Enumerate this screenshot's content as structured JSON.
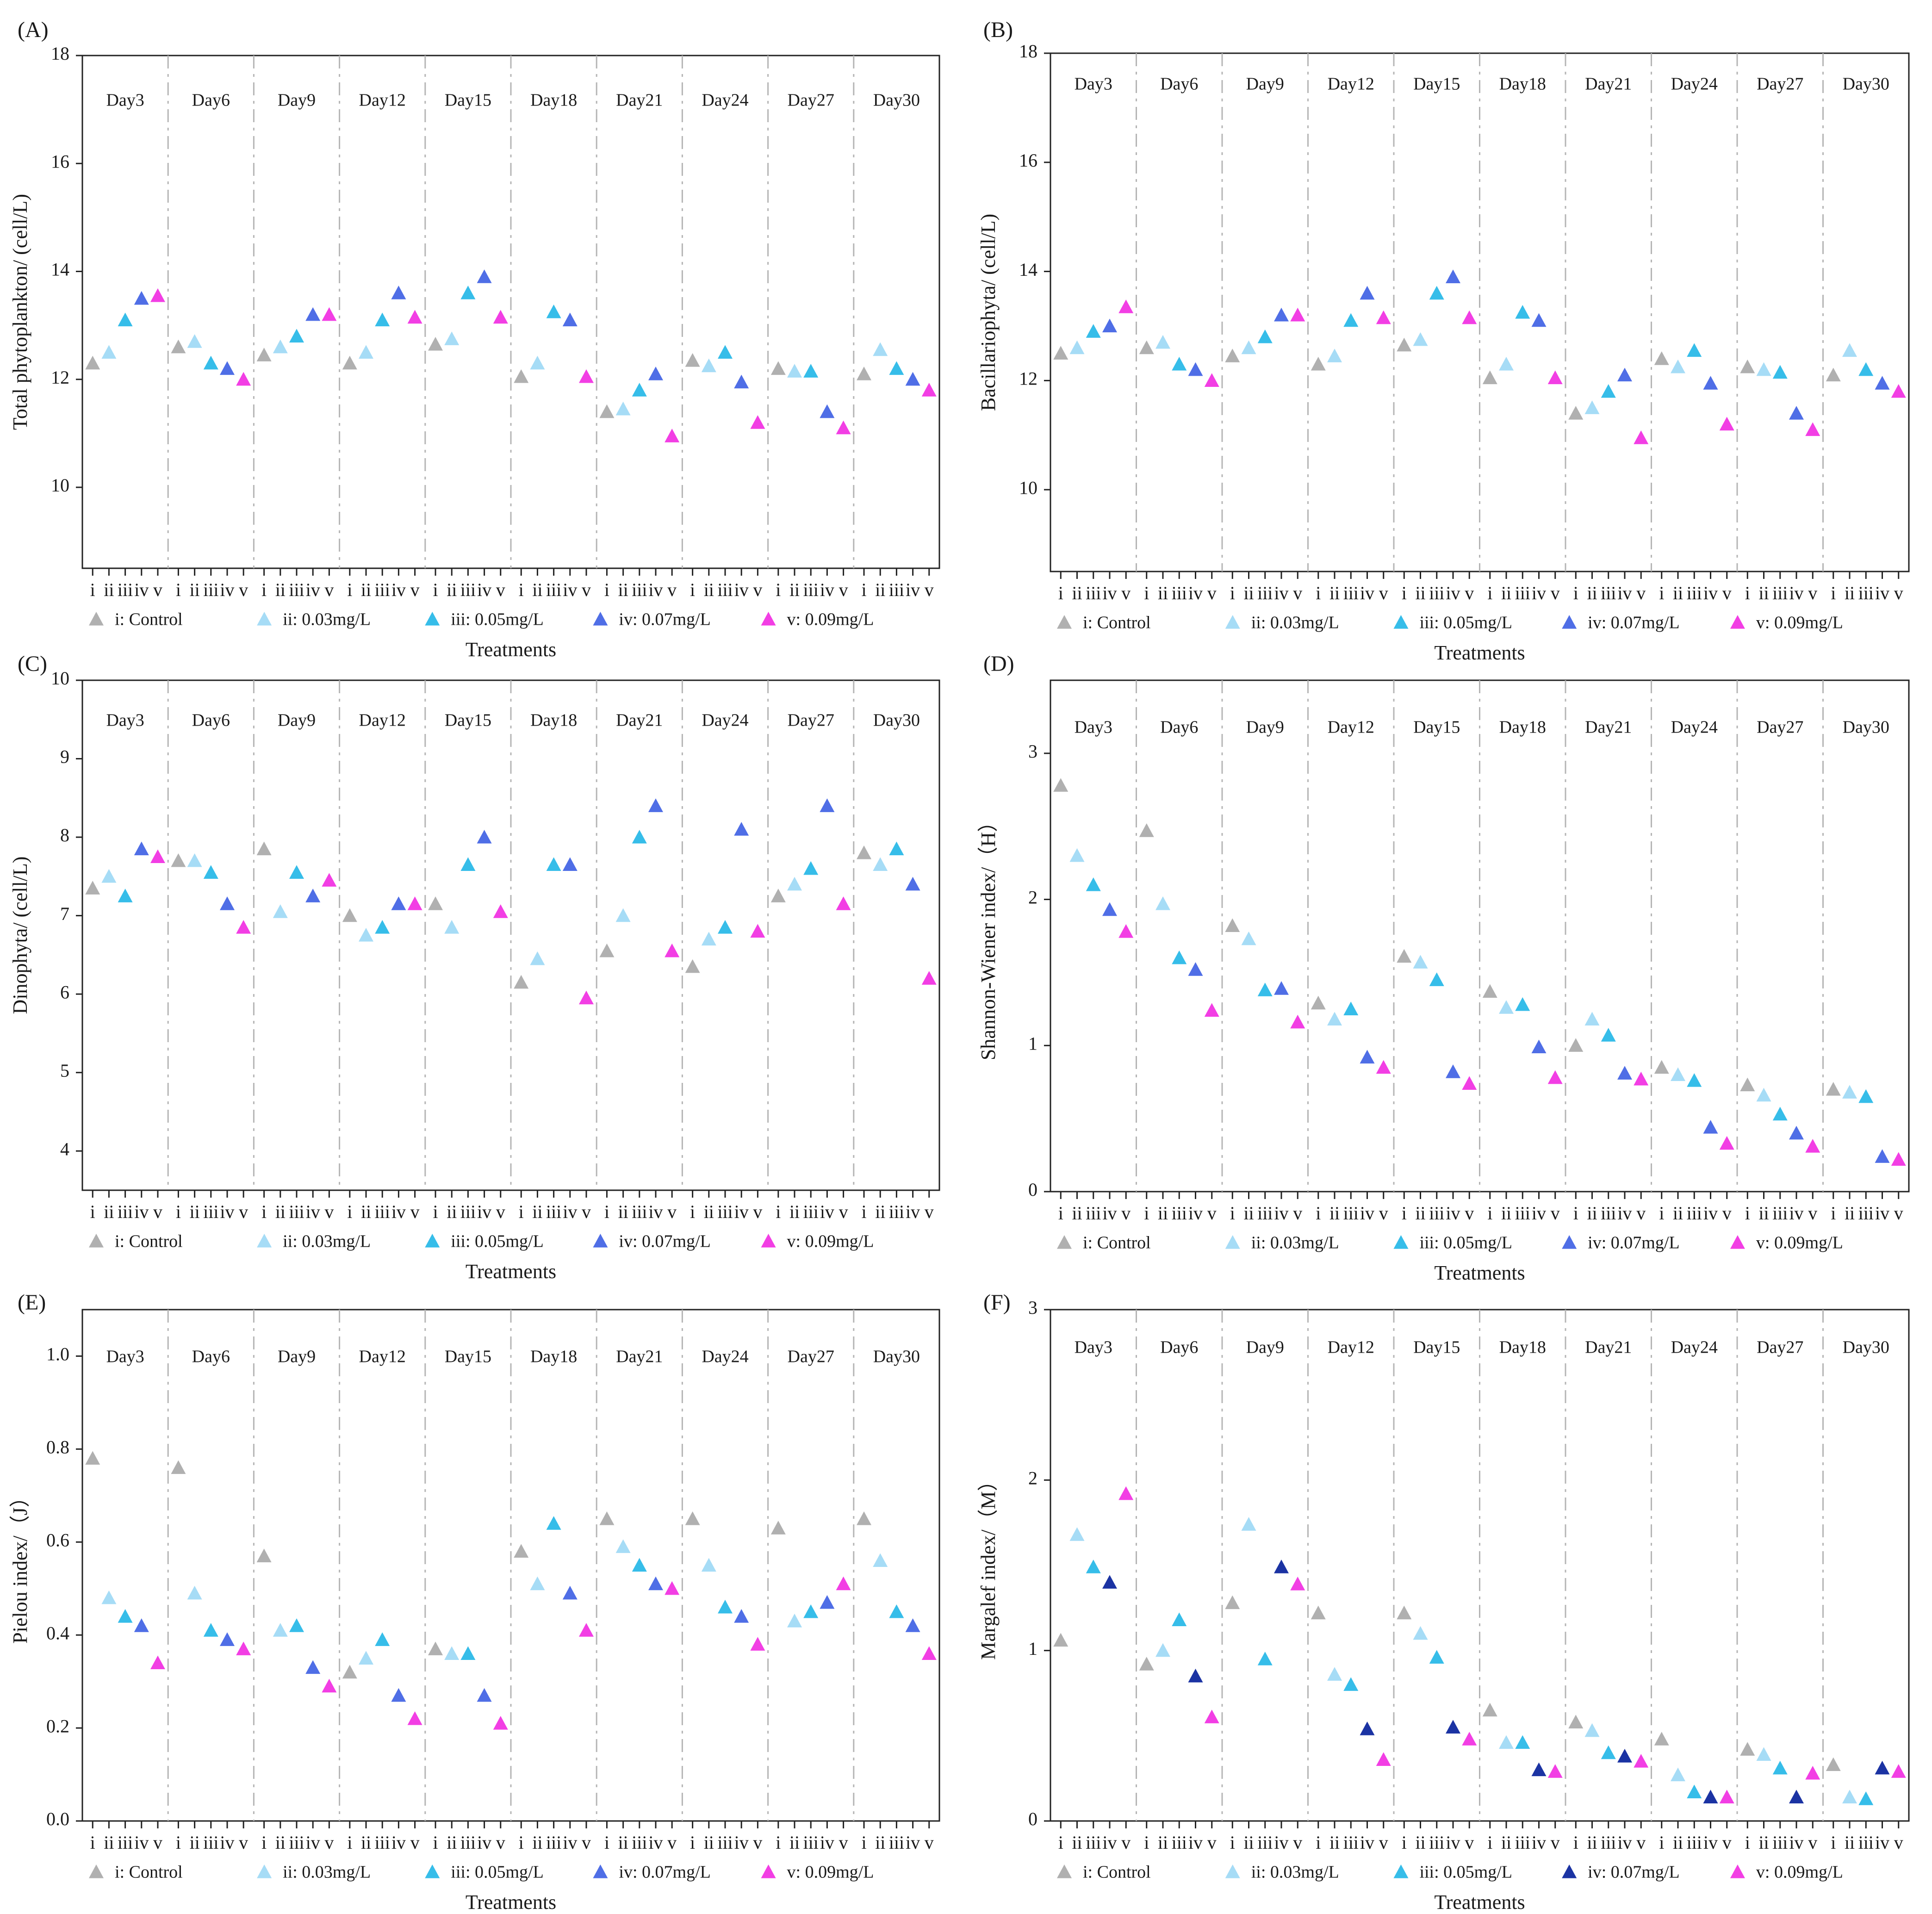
{
  "figure": {
    "x_axis_label": "Treatments",
    "group_tick_labels": [
      "i",
      "ii",
      "iii",
      "iv",
      "v"
    ],
    "series_colors": [
      "#b0b0b0",
      "#a6dcf6",
      "#36bde9",
      "#4f6ee6",
      "#f23ee4"
    ],
    "legend": [
      "i: Control",
      "ii: 0.03mg/L",
      "iii: 0.05mg/L",
      "iv: 0.07mg/L",
      "v: 0.09mg/L"
    ]
  },
  "chart_data": [
    {
      "panel": "(A)",
      "type": "scatter",
      "marker": "triangle",
      "ylabel": "Total phytoplankton/ (cell/L)",
      "ylim": [
        8.5,
        18
      ],
      "yticks": [
        10,
        12,
        14,
        16,
        18
      ],
      "days": [
        "Day3",
        "Day6",
        "Day9",
        "Day12",
        "Day15",
        "Day18",
        "Day21",
        "Day24",
        "Day27",
        "Day30"
      ],
      "values": [
        [
          12.3,
          12.5,
          13.1,
          13.5,
          13.55
        ],
        [
          12.6,
          12.7,
          12.3,
          12.2,
          12.0
        ],
        [
          12.45,
          12.6,
          12.8,
          13.2,
          13.2
        ],
        [
          12.3,
          12.5,
          13.1,
          13.6,
          13.15
        ],
        [
          12.65,
          12.75,
          13.6,
          13.9,
          13.15
        ],
        [
          12.05,
          12.3,
          13.25,
          13.1,
          12.05
        ],
        [
          11.4,
          11.45,
          11.8,
          12.1,
          10.95
        ],
        [
          12.35,
          12.25,
          12.5,
          11.95,
          11.2
        ],
        [
          12.2,
          12.15,
          12.15,
          11.4,
          11.1
        ],
        [
          12.1,
          12.55,
          12.2,
          12.0,
          11.8
        ]
      ]
    },
    {
      "panel": "(B)",
      "type": "scatter",
      "marker": "triangle",
      "ylabel": "Bacillariophyta/ (cell/L)",
      "ylim": [
        8.5,
        18
      ],
      "yticks": [
        10,
        12,
        14,
        16,
        18
      ],
      "days": [
        "Day3",
        "Day6",
        "Day9",
        "Day12",
        "Day15",
        "Day18",
        "Day21",
        "Day24",
        "Day27",
        "Day30"
      ],
      "values": [
        [
          12.5,
          12.6,
          12.9,
          13.0,
          13.35
        ],
        [
          12.6,
          12.7,
          12.3,
          12.2,
          12.0
        ],
        [
          12.45,
          12.6,
          12.8,
          13.2,
          13.2
        ],
        [
          12.3,
          12.45,
          13.1,
          13.6,
          13.15
        ],
        [
          12.65,
          12.75,
          13.6,
          13.9,
          13.15
        ],
        [
          12.05,
          12.3,
          13.25,
          13.1,
          12.05
        ],
        [
          11.4,
          11.5,
          11.8,
          12.1,
          10.95
        ],
        [
          12.4,
          12.25,
          12.55,
          11.95,
          11.2
        ],
        [
          12.25,
          12.2,
          12.15,
          11.4,
          11.1
        ],
        [
          12.1,
          12.55,
          12.2,
          11.95,
          11.8
        ]
      ]
    },
    {
      "panel": "(C)",
      "type": "scatter",
      "marker": "triangle",
      "ylabel": "Dinophyta/ (cell/L)",
      "ylim": [
        3.5,
        10
      ],
      "yticks": [
        4,
        5,
        6,
        7,
        8,
        9,
        10
      ],
      "days": [
        "Day3",
        "Day6",
        "Day9",
        "Day12",
        "Day15",
        "Day18",
        "Day21",
        "Day24",
        "Day27",
        "Day30"
      ],
      "values": [
        [
          7.35,
          7.5,
          7.25,
          7.85,
          7.75
        ],
        [
          7.7,
          7.7,
          7.55,
          7.15,
          6.85
        ],
        [
          7.85,
          7.05,
          7.55,
          7.25,
          7.45
        ],
        [
          7.0,
          6.75,
          6.85,
          7.15,
          7.15
        ],
        [
          7.15,
          6.85,
          7.65,
          8.0,
          7.05
        ],
        [
          6.15,
          6.45,
          7.65,
          7.65,
          5.95
        ],
        [
          6.55,
          7.0,
          8.0,
          8.4,
          6.55
        ],
        [
          6.35,
          6.7,
          6.85,
          8.1,
          6.8
        ],
        [
          7.25,
          7.4,
          7.6,
          8.4,
          7.15
        ],
        [
          7.8,
          7.65,
          7.85,
          7.4,
          6.2
        ]
      ]
    },
    {
      "panel": "(D)",
      "type": "scatter",
      "marker": "triangle",
      "ylabel": "Shannon-Wiener index/（H）",
      "ylim": [
        0,
        3.5
      ],
      "yticks": [
        0,
        1,
        2,
        3
      ],
      "days": [
        "Day3",
        "Day6",
        "Day9",
        "Day12",
        "Day15",
        "Day18",
        "Day21",
        "Day24",
        "Day27",
        "Day30"
      ],
      "values": [
        [
          2.78,
          2.3,
          2.1,
          1.93,
          1.78
        ],
        [
          2.47,
          1.97,
          1.6,
          1.52,
          1.24
        ],
        [
          1.82,
          1.73,
          1.38,
          1.39,
          1.16
        ],
        [
          1.29,
          1.18,
          1.25,
          0.92,
          0.85
        ],
        [
          1.61,
          1.57,
          1.45,
          0.82,
          0.74
        ],
        [
          1.37,
          1.26,
          1.28,
          0.99,
          0.78
        ],
        [
          1.0,
          1.18,
          1.07,
          0.81,
          0.77
        ],
        [
          0.85,
          0.8,
          0.76,
          0.44,
          0.33
        ],
        [
          0.73,
          0.66,
          0.53,
          0.4,
          0.31
        ],
        [
          0.7,
          0.68,
          0.65,
          0.24,
          0.22
        ]
      ]
    },
    {
      "panel": "(E)",
      "type": "scatter",
      "marker": "triangle",
      "ylabel": "Pielou index/（J）",
      "ylim": [
        0,
        1.1
      ],
      "yticks": [
        0.0,
        0.2,
        0.4,
        0.6,
        0.8,
        1.0
      ],
      "days": [
        "Day3",
        "Day6",
        "Day9",
        "Day12",
        "Day15",
        "Day18",
        "Day21",
        "Day24",
        "Day27",
        "Day30"
      ],
      "values": [
        [
          0.78,
          0.48,
          0.44,
          0.42,
          0.34
        ],
        [
          0.76,
          0.49,
          0.41,
          0.39,
          0.37
        ],
        [
          0.57,
          0.41,
          0.42,
          0.33,
          0.29
        ],
        [
          0.32,
          0.35,
          0.39,
          0.27,
          0.22
        ],
        [
          0.37,
          0.36,
          0.36,
          0.27,
          0.21
        ],
        [
          0.58,
          0.51,
          0.64,
          0.49,
          0.41
        ],
        [
          0.65,
          0.59,
          0.55,
          0.51,
          0.5
        ],
        [
          0.65,
          0.55,
          0.46,
          0.44,
          0.38
        ],
        [
          0.63,
          0.43,
          0.45,
          0.47,
          0.51
        ],
        [
          0.65,
          0.56,
          0.45,
          0.42,
          0.36
        ]
      ]
    },
    {
      "panel": "(F)",
      "type": "scatter",
      "marker": "triangle",
      "ylabel": "Margalef index/（M）",
      "ylim": [
        0,
        3
      ],
      "yticks": [
        0,
        1,
        2,
        3
      ],
      "series_colors": [
        "#b0b0b0",
        "#a6dcf6",
        "#36bde9",
        "#1b33a3",
        "#f23ee4"
      ],
      "days": [
        "Day3",
        "Day6",
        "Day9",
        "Day12",
        "Day15",
        "Day18",
        "Day21",
        "Day24",
        "Day27",
        "Day30"
      ],
      "values": [
        [
          1.06,
          1.68,
          1.49,
          1.4,
          1.92
        ],
        [
          0.92,
          1.0,
          1.18,
          0.85,
          0.61
        ],
        [
          1.28,
          1.74,
          0.95,
          1.49,
          1.39
        ],
        [
          1.22,
          0.86,
          0.8,
          0.54,
          0.36
        ],
        [
          1.22,
          1.1,
          0.96,
          0.55,
          0.48
        ],
        [
          0.65,
          0.46,
          0.46,
          0.3,
          0.29
        ],
        [
          0.58,
          0.53,
          0.4,
          0.38,
          0.35
        ],
        [
          0.48,
          0.27,
          0.17,
          0.14,
          0.14
        ],
        [
          0.42,
          0.39,
          0.31,
          0.14,
          0.28
        ],
        [
          0.33,
          0.14,
          0.13,
          0.31,
          0.29
        ]
      ]
    }
  ]
}
